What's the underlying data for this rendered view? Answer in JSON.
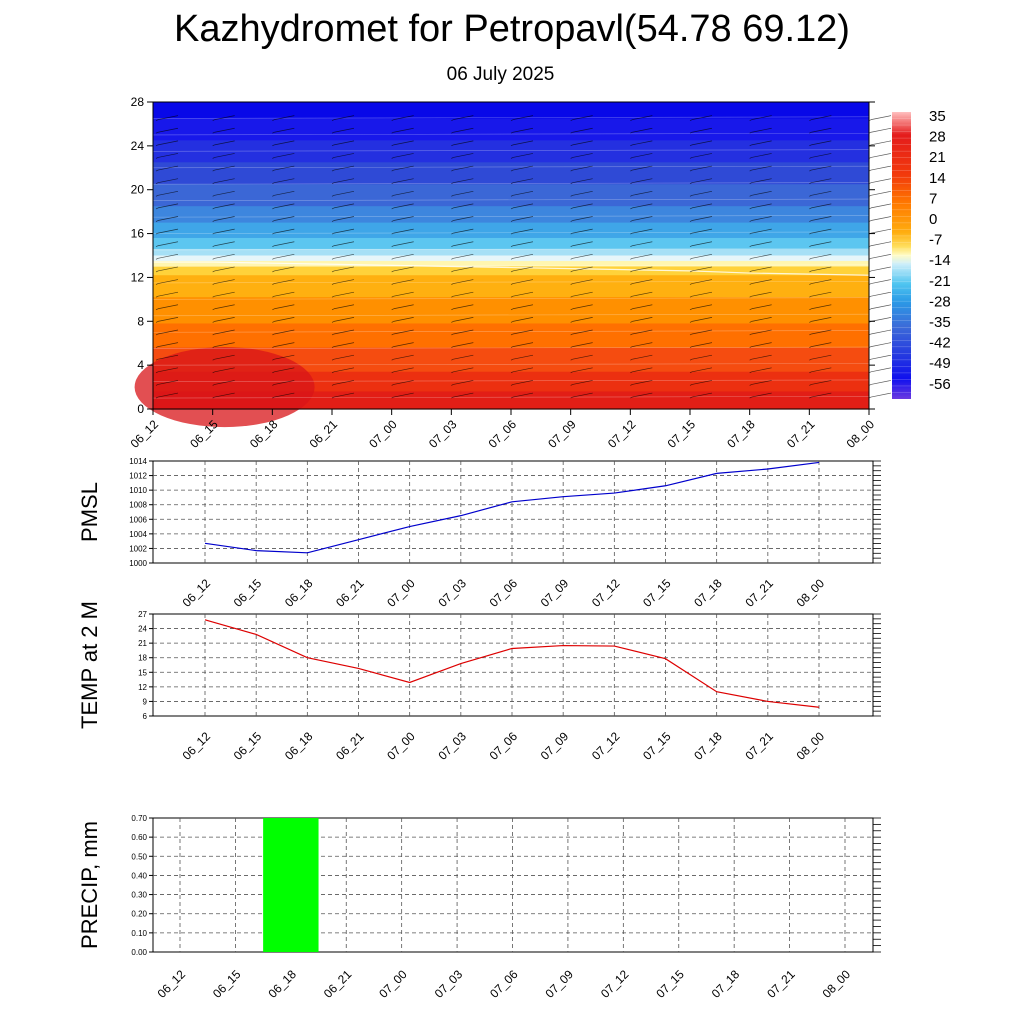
{
  "title": "Kazhydromet for Petropavl(54.78 69.12)",
  "subtitle": "06 July 2025",
  "colors": {
    "pmsl_line": "#0000cc",
    "temp_line": "#dd0000",
    "precip_bar": "#00ff00",
    "grid": "#555555"
  },
  "chart_data": [
    {
      "type": "heatmap",
      "title": "",
      "ylim": [
        0,
        28
      ],
      "yticks": [
        "0",
        "4",
        "8",
        "12",
        "16",
        "20",
        "24",
        "28"
      ],
      "categories": [
        "06_12",
        "06_15",
        "06_18",
        "06_21",
        "07_00",
        "07_03",
        "07_06",
        "07_09",
        "07_12",
        "07_15",
        "07_18",
        "07_21",
        "08_00"
      ],
      "colorbar_labels": [
        "35",
        "28",
        "21",
        "14",
        "7",
        "0",
        "-7",
        "-14",
        "-21",
        "-28",
        "-35",
        "-42",
        "-49",
        "-56"
      ],
      "freezing_level": [
        13.4,
        13.4,
        13.3,
        13.2,
        13.1,
        13.0,
        12.9,
        12.8,
        12.7,
        12.6,
        12.4,
        12.3,
        12.2
      ]
    },
    {
      "type": "line",
      "ylabel": "PMSL",
      "ylim": [
        1000,
        1014
      ],
      "yticks": [
        "1000",
        "1002",
        "1004",
        "1006",
        "1008",
        "1010",
        "1012",
        "1014"
      ],
      "categories": [
        "06_12",
        "06_15",
        "06_18",
        "06_21",
        "07_00",
        "07_03",
        "07_06",
        "07_09",
        "07_12",
        "07_15",
        "07_18",
        "07_21",
        "08_00"
      ],
      "values": [
        1002.7,
        1001.7,
        1001.4,
        1003.2,
        1005.0,
        1006.5,
        1008.4,
        1009.1,
        1009.6,
        1010.6,
        1012.3,
        1012.9,
        1013.8
      ]
    },
    {
      "type": "line",
      "ylabel": "TEMP at 2 M",
      "ylim": [
        6,
        27
      ],
      "yticks": [
        "6",
        "9",
        "12",
        "15",
        "18",
        "21",
        "24",
        "27"
      ],
      "categories": [
        "06_12",
        "06_15",
        "06_18",
        "06_21",
        "07_00",
        "07_03",
        "07_06",
        "07_09",
        "07_12",
        "07_15",
        "07_18",
        "07_21",
        "08_00"
      ],
      "values": [
        25.8,
        22.8,
        18.0,
        15.8,
        12.9,
        16.8,
        19.9,
        20.5,
        20.4,
        17.8,
        11.0,
        9.0,
        7.8
      ]
    },
    {
      "type": "bar",
      "ylabel": "PRECIP, mm",
      "ylim": [
        0,
        0.7
      ],
      "yticks": [
        "0.00",
        "0.10",
        "0.20",
        "0.30",
        "0.40",
        "0.50",
        "0.60",
        "0.70"
      ],
      "categories": [
        "06_12",
        "06_15",
        "06_18",
        "06_21",
        "07_00",
        "07_03",
        "07_06",
        "07_09",
        "07_12",
        "07_15",
        "07_18",
        "07_21",
        "08_00"
      ],
      "values": [
        0,
        0,
        0.7,
        0,
        0,
        0,
        0,
        0,
        0,
        0,
        0,
        0,
        0
      ]
    }
  ]
}
